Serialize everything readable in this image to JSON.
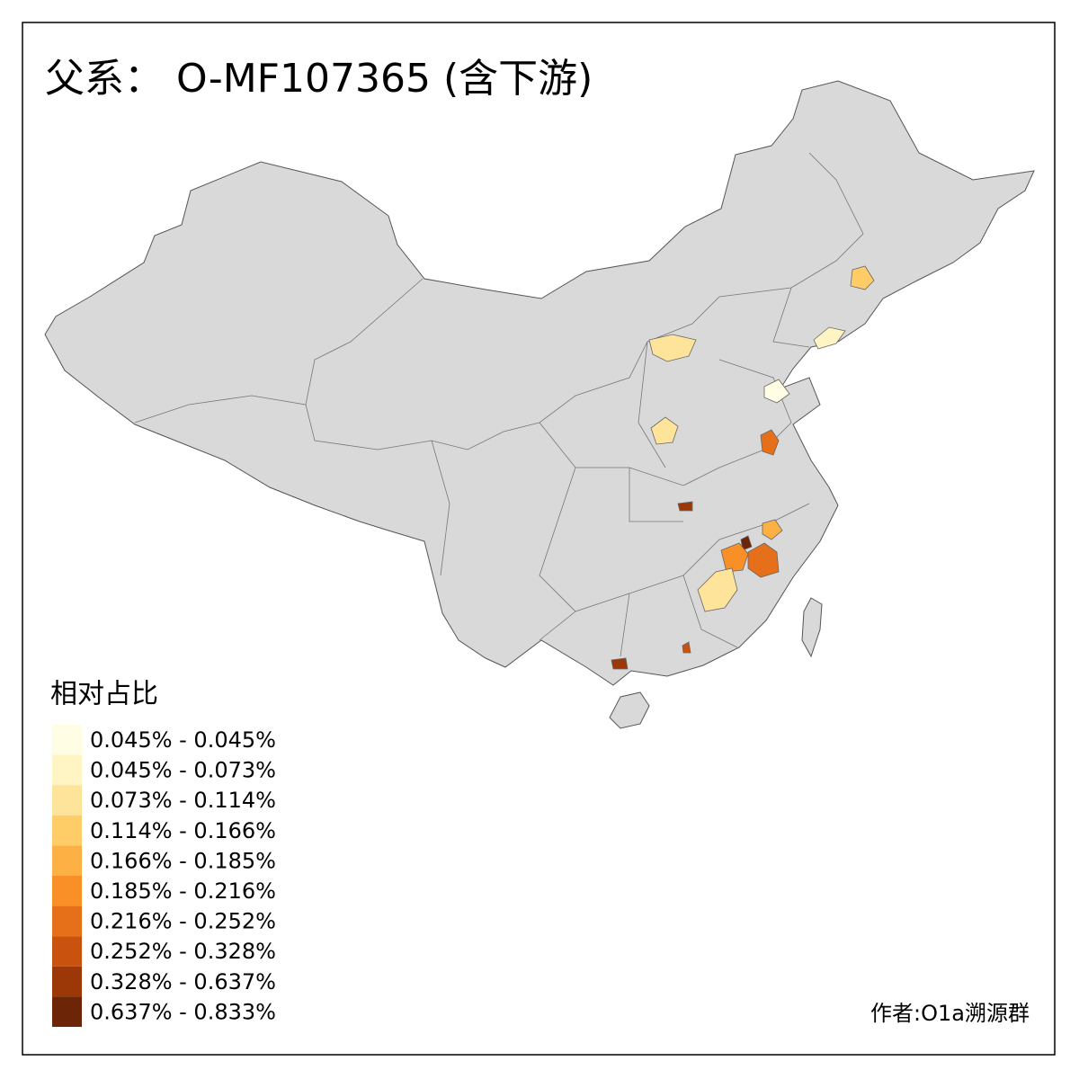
{
  "title": "父系： O-MF107365 (含下游)",
  "legend": {
    "title": "相对占比",
    "items": [
      {
        "label": "0.045% - 0.045%",
        "color": "#fffde3"
      },
      {
        "label": "0.045% - 0.073%",
        "color": "#fff4c3"
      },
      {
        "label": "0.073% - 0.114%",
        "color": "#fee39b"
      },
      {
        "label": "0.114% - 0.166%",
        "color": "#fecd68"
      },
      {
        "label": "0.166% - 0.185%",
        "color": "#fdb043"
      },
      {
        "label": "0.185% - 0.216%",
        "color": "#f98f27"
      },
      {
        "label": "0.216% - 0.252%",
        "color": "#e6701a"
      },
      {
        "label": "0.252% - 0.328%",
        "color": "#c9520e"
      },
      {
        "label": "0.328% - 0.637%",
        "color": "#9c3707"
      },
      {
        "label": "0.637% - 0.833%",
        "color": "#6c2507"
      }
    ]
  },
  "credit": "作者:O1a溯源群"
}
